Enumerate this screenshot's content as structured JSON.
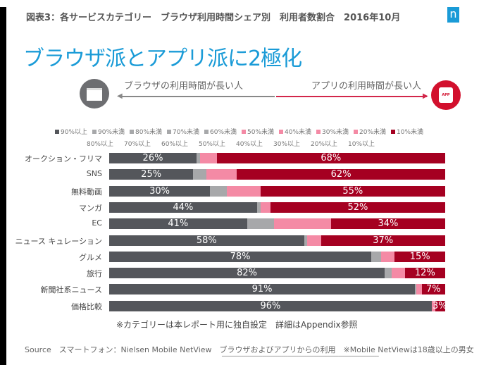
{
  "header": {
    "title": "図表3：各サービスカテゴリー　ブラウザ利用時間シェア別　利用者数割合　2016年10月",
    "logo": "n",
    "headline": "ブラウザ派とアプリ派に2極化"
  },
  "axis_labels": {
    "left": "ブラウザの利用時間が長い人",
    "right": "アプリの利用時間が長い人",
    "app_icon": "APP"
  },
  "chart_data": {
    "type": "bar",
    "orientation": "horizontal",
    "stacked": true,
    "legend": "top",
    "categories": [
      "オークション・フリマ",
      "SNS",
      "無料動画",
      "マンガ",
      "EC",
      "ニュース キュレーション",
      "グルメ",
      "旅行",
      "新聞社系ニュース",
      "価格比較"
    ],
    "series": [
      {
        "name": [
          "90%以上",
          ""
        ],
        "color": "#54565b",
        "values": [
          26,
          25,
          30,
          44,
          41,
          58,
          78,
          82,
          91,
          96
        ],
        "labels": [
          "26%",
          "25%",
          "30%",
          "44%",
          "41%",
          "58%",
          "78%",
          "82%",
          "91%",
          "96%"
        ]
      },
      {
        "name": [
          "90%未満",
          "80%以上"
        ],
        "color": "#a7a8aa",
        "values": [
          1,
          4,
          5,
          1,
          8,
          1,
          3,
          2,
          0.5,
          0
        ]
      },
      {
        "name": [
          "80%未満",
          "70%以上"
        ],
        "color": "#a7a8aa",
        "values": [
          0,
          0,
          0,
          0,
          0,
          0,
          0,
          0,
          0,
          0
        ]
      },
      {
        "name": [
          "70%未満",
          "60%以上"
        ],
        "color": "#a7a8aa",
        "values": [
          0,
          0,
          0,
          0,
          0,
          0,
          0,
          0,
          0,
          0
        ]
      },
      {
        "name": [
          "60%未満",
          "50%以上"
        ],
        "color": "#a7a8aa",
        "values": [
          0,
          0,
          0,
          0,
          0,
          0,
          0,
          0,
          0,
          0
        ]
      },
      {
        "name": [
          "50%未満",
          "40%以上"
        ],
        "color": "#f48aa5",
        "values": [
          0,
          0,
          0,
          0,
          0,
          0,
          0,
          0,
          0,
          0
        ]
      },
      {
        "name": [
          "40%未満",
          "30%以上"
        ],
        "color": "#f48aa5",
        "values": [
          0,
          0,
          0,
          0,
          0,
          0,
          0,
          0,
          0,
          0
        ]
      },
      {
        "name": [
          "30%未満",
          "20%以上"
        ],
        "color": "#f48aa5",
        "values": [
          0,
          0,
          0,
          0,
          0,
          0,
          0,
          0,
          0,
          0
        ]
      },
      {
        "name": [
          "20%未満",
          "10%以上"
        ],
        "color": "#f48aa5",
        "values": [
          5,
          9,
          10,
          3,
          17,
          4,
          4,
          4,
          1.5,
          1
        ]
      },
      {
        "name": [
          "10%未満",
          ""
        ],
        "color": "#a50021",
        "values": [
          68,
          62,
          55,
          52,
          34,
          37,
          15,
          12,
          7,
          3
        ],
        "labels": [
          "68%",
          "62%",
          "55%",
          "52%",
          "34%",
          "37%",
          "15%",
          "12%",
          "7%",
          "3%"
        ]
      }
    ],
    "xlim": [
      0,
      100
    ]
  },
  "footer": {
    "note": "※カテゴリーは本レポート用に独自設定　詳細はAppendix参照",
    "source": "Source　スマートフォン：Nielsen Mobile NetView　ブラウザおよびアプリからの利用　※Mobile NetViewは18歳以上の男女"
  }
}
